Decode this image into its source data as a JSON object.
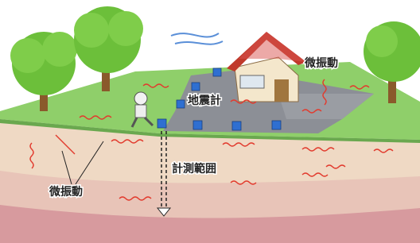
{
  "labels": {
    "microtremor_top": "微振動",
    "seismometer": "地震計",
    "measurement_range": "計測範囲",
    "microtremor_bottom": "微振動"
  }
}
